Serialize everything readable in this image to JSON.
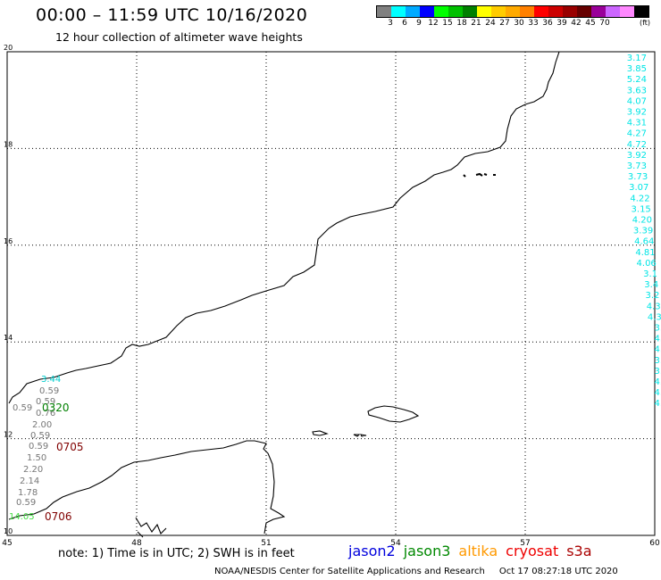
{
  "header": {
    "title": "00:00 – 11:59 UTC 10/16/2020",
    "subtitle": "12 hour collection of altimeter wave heights"
  },
  "colorbar": {
    "swatches": [
      "#808080",
      "#00ffff",
      "#00aaff",
      "#0000ff",
      "#00ff00",
      "#00c000",
      "#008000",
      "#ffff00",
      "#ffcc00",
      "#ffaa00",
      "#ff8000",
      "#ff0000",
      "#cc0000",
      "#990000",
      "#660000",
      "#990099",
      "#cc66ff",
      "#ff88ff",
      "#000000"
    ],
    "labels": [
      "3",
      "6",
      "9",
      "12",
      "15",
      "18",
      "21",
      "24",
      "27",
      "30",
      "33",
      "36",
      "39",
      "42",
      "45",
      "70"
    ],
    "unit": "(ft)"
  },
  "axes": {
    "x_ticks": [
      "45",
      "48",
      "51",
      "54",
      "57",
      "60"
    ],
    "y_ticks": [
      "20",
      "18",
      "16",
      "14",
      "12",
      "10"
    ]
  },
  "annotations": {
    "right_column": [
      "3.17",
      "3.85",
      "5.24",
      "3.63",
      "4.07",
      "3.92",
      "4.31",
      "4.27",
      "4.72",
      "3.92",
      "3.73",
      "3.73",
      "3.07",
      "4.22",
      "3.15",
      "4.20",
      "3.39",
      "4.64",
      "4.81",
      "4.06",
      "3.1",
      "3.4",
      "3.2",
      "4.3",
      "4.3",
      "3.",
      "4.",
      "4.",
      "3.",
      "3.",
      "4.",
      "4.",
      "4."
    ],
    "right_color": "#00e5e5",
    "left_cluster": [
      {
        "text": "3.44",
        "color": "#00cccc"
      },
      {
        "text": "0.59",
        "color": "#777777"
      },
      {
        "text": "0.59",
        "color": "#777777"
      },
      {
        "text": "0.59",
        "color": "#777777"
      },
      {
        "text": "0.76",
        "color": "#777777"
      },
      {
        "text": "2.00",
        "color": "#777777"
      },
      {
        "text": "0.59",
        "color": "#777777"
      },
      {
        "text": "0.59",
        "color": "#777777"
      },
      {
        "text": "1.50",
        "color": "#777777"
      },
      {
        "text": "2.20",
        "color": "#777777"
      },
      {
        "text": "2.14",
        "color": "#777777"
      },
      {
        "text": "1.78",
        "color": "#777777"
      },
      {
        "text": "0.59",
        "color": "#777777"
      },
      {
        "text": "14.05",
        "color": "#44dd44"
      }
    ],
    "pass_times": [
      {
        "text": "0320",
        "color": "#008000"
      },
      {
        "text": "0705",
        "color": "#800000"
      },
      {
        "text": "0706",
        "color": "#800000"
      }
    ]
  },
  "footer": {
    "note": "note:  1) Time is in UTC;  2) SWH is in feet",
    "satellites": [
      {
        "name": "jason2",
        "color": "#0000dd"
      },
      {
        "name": "jason3",
        "color": "#008800"
      },
      {
        "name": "altika",
        "color": "#ff9900"
      },
      {
        "name": "cryosat",
        "color": "#ee0000"
      },
      {
        "name": "s3a",
        "color": "#aa0000"
      }
    ],
    "credit": "NOAA/NESDIS Center for Satellite Applications and Research",
    "timestamp": "Oct 17 08:27:18 UTC 2020"
  }
}
